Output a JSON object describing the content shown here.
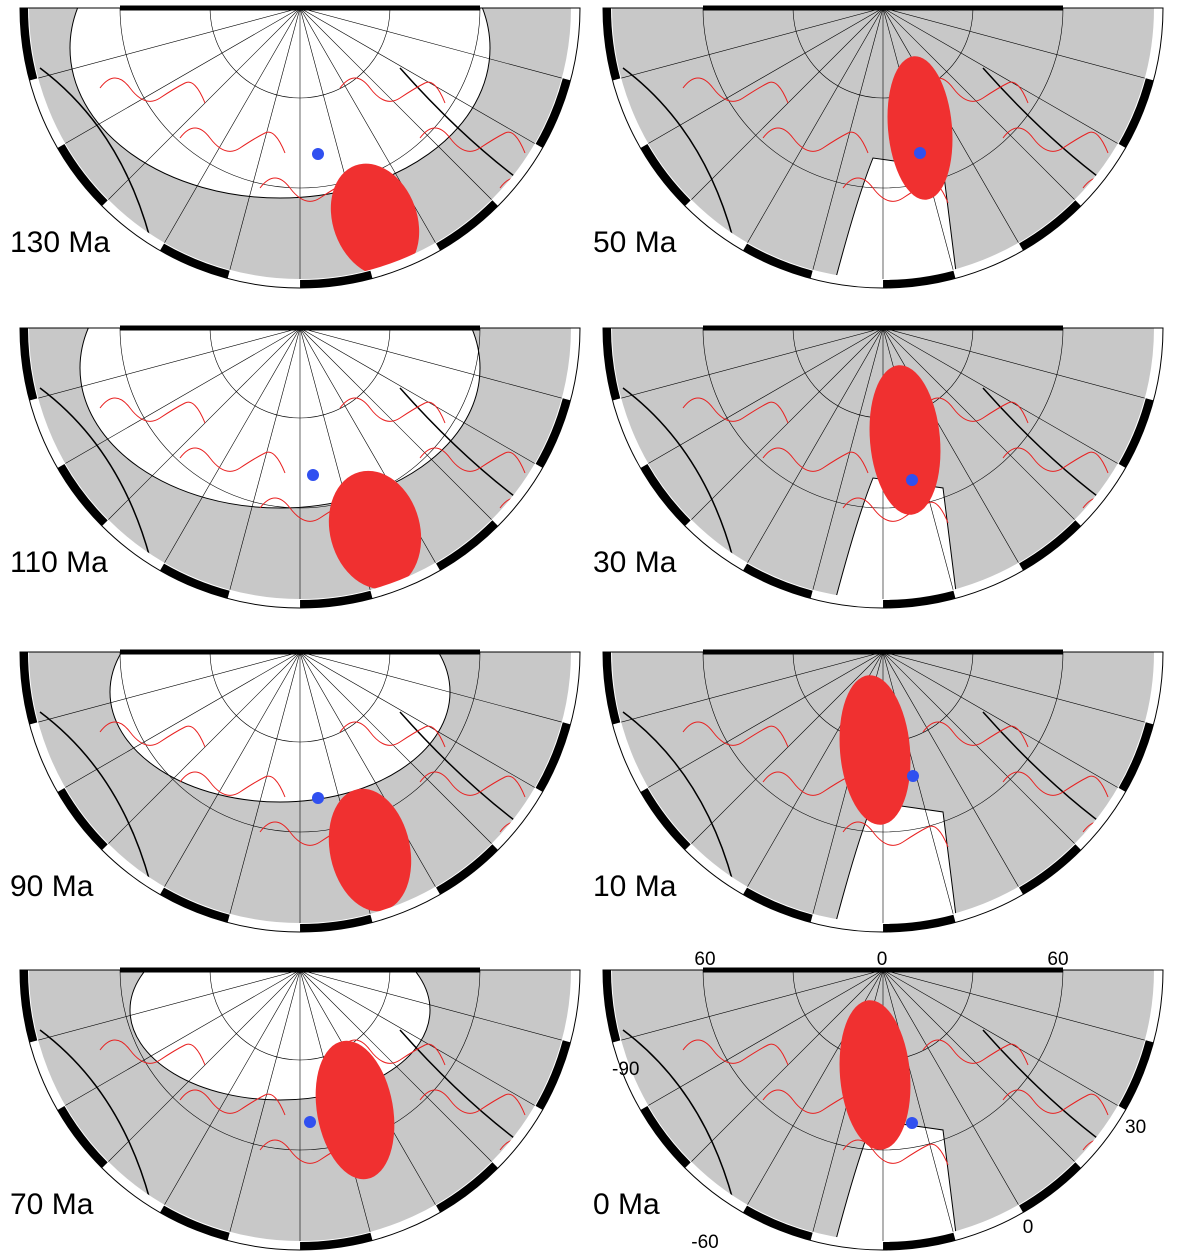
{
  "panels": [
    {
      "age": "130 Ma"
    },
    {
      "age": "50 Ma"
    },
    {
      "age": "110 Ma"
    },
    {
      "age": "30 Ma"
    },
    {
      "age": "90 Ma"
    },
    {
      "age": "10 Ma"
    },
    {
      "age": "70 Ma"
    },
    {
      "age": "0 Ma"
    }
  ],
  "axis_labels": [
    "60",
    "0",
    "60",
    "-90",
    "30",
    "-60",
    "0"
  ]
}
